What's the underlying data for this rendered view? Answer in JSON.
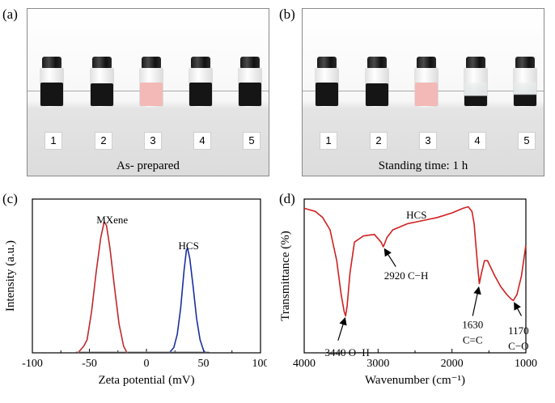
{
  "panels": {
    "a": {
      "label": "(a)",
      "caption": "As- prepared",
      "vial_numbers": [
        "1",
        "2",
        "3",
        "4",
        "5"
      ]
    },
    "b": {
      "label": "(b)",
      "caption": "Standing time: 1 h",
      "vial_numbers": [
        "1",
        "2",
        "3",
        "4",
        "5"
      ]
    },
    "c": {
      "label": "(c)"
    },
    "d": {
      "label": "(d)"
    }
  },
  "vial_colors": {
    "dark": "#151515",
    "pink": "#f2b9b6",
    "clear": "#eef0f0"
  },
  "chart_data": [
    {
      "type": "line",
      "xlabel": "Zeta potential (mV)",
      "ylabel": "Intensity (a.u.)",
      "xlim": [
        -100,
        100
      ],
      "xticks": [
        "-100",
        "-50",
        "0",
        "50",
        "100"
      ],
      "series": [
        {
          "name": "MXene",
          "color": "#c0282b",
          "x": [
            -60,
            -55,
            -52,
            -48,
            -44,
            -40,
            -37,
            -35,
            -32,
            -28,
            -24,
            -20,
            -17
          ],
          "y": [
            0,
            0.05,
            0.1,
            0.32,
            0.62,
            0.88,
            1.0,
            0.97,
            0.8,
            0.5,
            0.22,
            0.05,
            0
          ]
        },
        {
          "name": "HCS",
          "color": "#1a2f9e",
          "x": [
            20,
            24,
            27,
            30,
            33,
            35,
            36,
            38,
            41,
            44,
            47,
            50,
            52
          ],
          "y": [
            0,
            0.04,
            0.14,
            0.34,
            0.63,
            0.78,
            0.8,
            0.72,
            0.5,
            0.26,
            0.1,
            0.02,
            0
          ]
        }
      ],
      "annotations": [
        "MXene",
        "HCS"
      ]
    },
    {
      "type": "line",
      "title": "HCS",
      "xlabel": "Wavenumber (cm⁻¹)",
      "ylabel": "Transmittance (%)",
      "xlim": [
        4000,
        1000
      ],
      "xticks": [
        "4000",
        "3000",
        "2000",
        "1000"
      ],
      "series": [
        {
          "color": "#d02020",
          "x": [
            4000,
            3850,
            3750,
            3650,
            3560,
            3500,
            3460,
            3440,
            3420,
            3380,
            3320,
            3200,
            3050,
            2960,
            2930,
            2920,
            2880,
            2800,
            2600,
            2400,
            2200,
            2000,
            1850,
            1780,
            1730,
            1700,
            1680,
            1650,
            1630,
            1600,
            1560,
            1520,
            1480,
            1420,
            1340,
            1260,
            1200,
            1170,
            1120,
            1060,
            1000
          ],
          "y": [
            0.94,
            0.92,
            0.88,
            0.8,
            0.6,
            0.38,
            0.27,
            0.24,
            0.3,
            0.52,
            0.72,
            0.76,
            0.77,
            0.72,
            0.69,
            0.7,
            0.75,
            0.8,
            0.84,
            0.86,
            0.88,
            0.91,
            0.94,
            0.95,
            0.92,
            0.84,
            0.72,
            0.55,
            0.45,
            0.52,
            0.6,
            0.6,
            0.56,
            0.5,
            0.43,
            0.38,
            0.35,
            0.34,
            0.38,
            0.5,
            0.7
          ]
        }
      ],
      "annotations": [
        {
          "text": "3440 O−H",
          "x": 3440
        },
        {
          "text": "2920 C−H",
          "x": 2920
        },
        {
          "text": "1630",
          "text2": "C=C",
          "x": 1630
        },
        {
          "text": "1170",
          "text2": "C−O",
          "x": 1170
        }
      ]
    }
  ]
}
